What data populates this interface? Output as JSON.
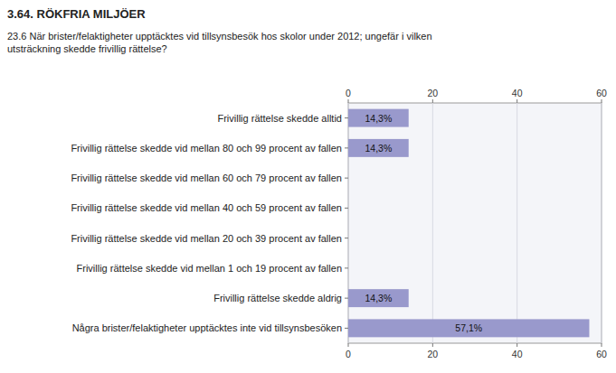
{
  "chart_data": {
    "type": "bar",
    "orientation": "horizontal",
    "title": "3.64. RÖKFRIA MILJÖER",
    "subtitle": "23.6 När brister/felaktigheter upptäcktes vid tillsynsbesök hos skolor under 2012; ungefär i vilken\nutsträckning skedde frivillig rättelse?",
    "categories": [
      "Några brister/felaktigheter upptäcktes inte vid tillsynsbesöken",
      "Frivillig rättelse skedde aldrig",
      "Frivillig rättelse skedde vid mellan 1 och 19 procent av fallen",
      "Frivillig rättelse skedde vid mellan 20 och 39 procent av fallen",
      "Frivillig rättelse skedde vid mellan 40 och 59 procent av fallen",
      "Frivillig rättelse skedde vid mellan 60 och 79 procent av fallen",
      "Frivillig rättelse skedde vid mellan 80 och 99 procent av fallen",
      "Frivillig rättelse skedde alltid"
    ],
    "values": [
      57.1,
      14.3,
      0,
      0,
      0,
      0,
      14.3,
      14.3
    ],
    "value_labels": [
      "57,1%",
      "14,3%",
      null,
      null,
      null,
      null,
      "14,3%",
      "14,3%"
    ],
    "data_labels": true,
    "color": "#9999cc",
    "xlim": [
      0,
      60
    ],
    "xticks": [
      0,
      20,
      40,
      60
    ],
    "grid": true
  }
}
